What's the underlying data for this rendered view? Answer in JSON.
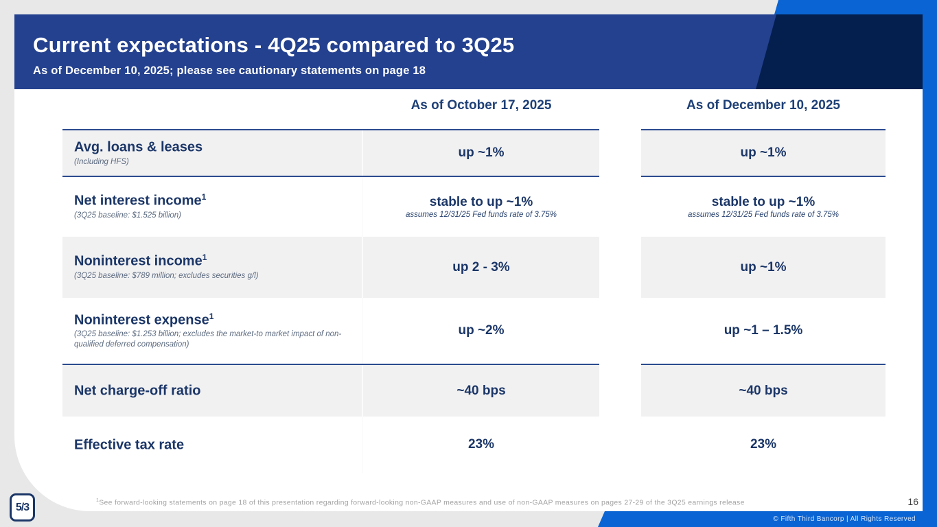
{
  "header": {
    "title": "Current expectations - 4Q25 compared to 3Q25",
    "subtitle": "As of December 10, 2025; please see cautionary statements on page 18"
  },
  "table": {
    "column_headers": [
      "As of October 17, 2025",
      "As of December 10, 2025"
    ],
    "rows": [
      {
        "label": "Avg. loans & leases",
        "sup": "",
        "sublabel": "(Including HFS)",
        "oct": "up ~1%",
        "oct_note": "",
        "dec": "up ~1%",
        "dec_note": ""
      },
      {
        "label": "Net interest income",
        "sup": "1",
        "sublabel": "(3Q25 baseline: $1.525 billion)",
        "oct": "stable to up ~1%",
        "oct_note": "assumes 12/31/25 Fed funds rate of 3.75%",
        "dec": "stable to up ~1%",
        "dec_note": "assumes 12/31/25 Fed funds rate of 3.75%"
      },
      {
        "label": "Noninterest income",
        "sup": "1",
        "sublabel": "(3Q25 baseline: $789 million; excludes securities g/l)",
        "oct": "up 2 - 3%",
        "oct_note": "",
        "dec": "up ~1%",
        "dec_note": ""
      },
      {
        "label": "Noninterest expense",
        "sup": "1",
        "sublabel": "(3Q25 baseline: $1.253 billion; excludes the market-to market impact of non-qualified deferred compensation)",
        "oct": "up ~2%",
        "oct_note": "",
        "dec": "up ~1 – 1.5%",
        "dec_note": ""
      },
      {
        "label": "Net charge-off ratio",
        "sup": "",
        "sublabel": "",
        "oct": "~40 bps",
        "oct_note": "",
        "dec": "~40 bps",
        "dec_note": ""
      },
      {
        "label": "Effective tax rate",
        "sup": "",
        "sublabel": "",
        "oct": "23%",
        "oct_note": "",
        "dec": "23%",
        "dec_note": ""
      }
    ]
  },
  "footer": {
    "footnote_sup": "1",
    "footnote_text": "See forward-looking statements on page 18 of this presentation regarding forward-looking non-GAAP measures and use of non-GAAP measures on pages 27-29 of the 3Q25 earnings release",
    "page_number": "16",
    "copyright": "© Fifth Third Bancorp | All Rights Reserved",
    "logo_text": "5/3"
  },
  "colors": {
    "header_blue": "#24418f",
    "dark_navy_accent": "#041f4e",
    "bright_blue_accent": "#0a64d3",
    "text_navy": "#1b3667",
    "row_shade": "#f1f1f2",
    "page_background": "#e8e8e8"
  }
}
